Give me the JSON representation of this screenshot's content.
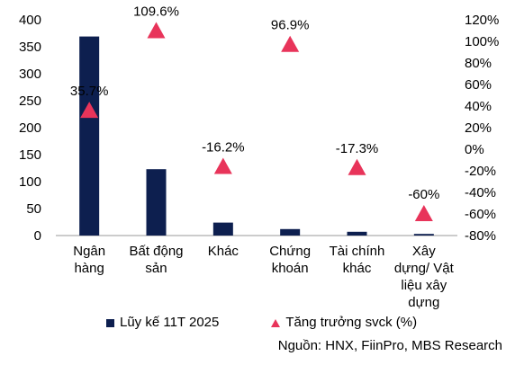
{
  "chart_data": {
    "type": "bar",
    "categories": [
      [
        "Ngân",
        "hàng"
      ],
      [
        "Bất động",
        "sản"
      ],
      [
        "Khác"
      ],
      [
        "Chứng",
        "khoán"
      ],
      [
        "Tài chính",
        "khác"
      ],
      [
        "Xây",
        "dựng/ Vật",
        "liệu xây",
        "dựng"
      ]
    ],
    "series": [
      {
        "name": "Lũy kế 11T 2025",
        "type": "bar",
        "axis": "left",
        "color": "#0d1f4f",
        "values": [
          369,
          123,
          24,
          12,
          7,
          3
        ]
      },
      {
        "name": "Tăng trưởng svck (%)",
        "type": "scatter-triangle",
        "axis": "right",
        "color": "#e8345a",
        "values": [
          35.7,
          109.6,
          -16.2,
          96.9,
          -17.3,
          -60
        ],
        "labels": [
          "35.7%",
          "109.6%",
          "-16.2%",
          "96.9%",
          "-17.3%",
          "-60%"
        ]
      }
    ],
    "y_left": {
      "ylim": [
        0,
        400
      ],
      "ticks": [
        "0",
        "50",
        "100",
        "150",
        "200",
        "250",
        "300",
        "350",
        "400"
      ]
    },
    "y_right": {
      "ylim": [
        -80,
        120
      ],
      "ticks": [
        "-80%",
        "-60%",
        "-40%",
        "-20%",
        "0%",
        "20%",
        "40%",
        "60%",
        "80%",
        "100%",
        "120%"
      ]
    },
    "grid": false,
    "legend": "bottom"
  },
  "legend": {
    "bar_label": "Lũy kế 11T 2025",
    "marker_label": "Tăng trưởng svck (%)"
  },
  "source": "Nguồn: HNX, FiinPro, MBS Research"
}
